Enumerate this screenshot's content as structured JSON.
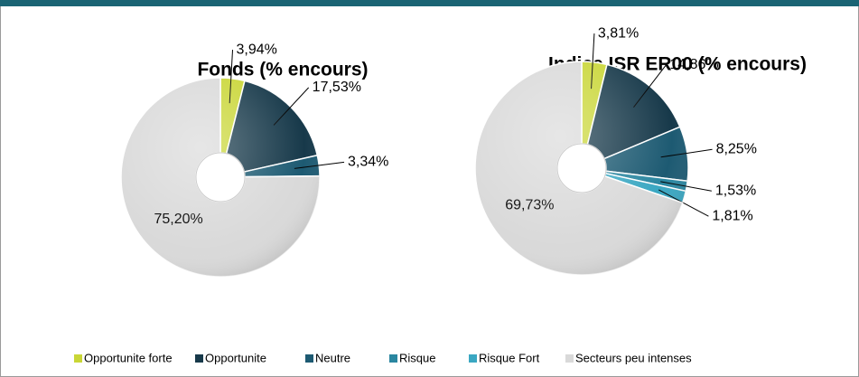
{
  "chart_data": [
    {
      "type": "pie",
      "title": "Fonds (% encours)",
      "categories": [
        "Opportunite forte",
        "Opportunite",
        "Neutre",
        "Risque",
        "Risque Fort",
        "Secteurs peu intenses"
      ],
      "values": [
        3.94,
        17.53,
        3.34,
        null,
        null,
        75.2
      ],
      "value_labels": [
        "3,94%",
        "17,53%",
        "3,34%",
        null,
        null,
        "75,20%"
      ],
      "colors": [
        "#c9d636",
        "#17394a",
        "#1d5a72",
        "#2a86a0",
        "#3aa7c2",
        "#d9d9d9"
      ]
    },
    {
      "type": "pie",
      "title": "Indice ISR ER00 (% encours)",
      "categories": [
        "Opportunite forte",
        "Opportunite",
        "Neutre",
        "Risque",
        "Risque Fort",
        "Secteurs peu intenses"
      ],
      "values": [
        3.81,
        14.86,
        8.25,
        1.53,
        1.81,
        69.73
      ],
      "value_labels": [
        "3,81%",
        "14,86%",
        "8,25%",
        "1,53%",
        "1,81%",
        "69,73%"
      ],
      "colors": [
        "#c9d636",
        "#17394a",
        "#1d5a72",
        "#2a86a0",
        "#3aa7c2",
        "#d9d9d9"
      ]
    }
  ]
}
